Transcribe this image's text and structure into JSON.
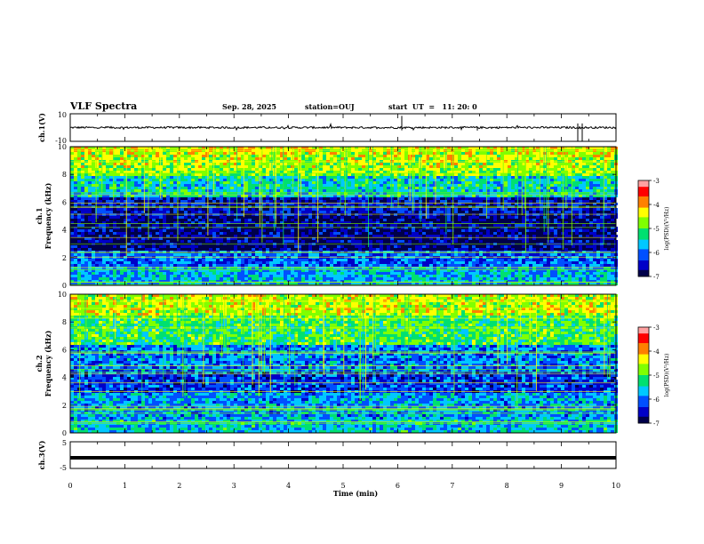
{
  "header": {
    "title": "VLF Spectra",
    "date": "Sep. 28, 2025",
    "station": "station=OUJ",
    "start": "start  UT  =   11: 20: 0"
  },
  "chart_data": [
    {
      "type": "line",
      "panel": "ch1-waveform",
      "ylabel": "ch.1(V)",
      "ylim": [
        -10,
        10
      ],
      "yticks": [
        "10",
        "-10"
      ],
      "xlim": [
        0,
        10
      ],
      "series": [
        {
          "values_description_level": 0
        }
      ]
    },
    {
      "type": "heatmap",
      "panel": "ch1-spectrogram",
      "ylabel_channel": "ch.1",
      "ylabel": "Frequency  (kHz)",
      "ylim": [
        0,
        10
      ],
      "yticks": [
        "0",
        "2",
        "4",
        "6",
        "8",
        "10"
      ],
      "xlim": [
        0,
        10
      ],
      "colorbar": {
        "label": "log(PSD)(V²/Hz)",
        "range": [
          -7,
          -3
        ],
        "ticks": [
          "-3",
          "-4",
          "-5",
          "-6",
          "-7"
        ]
      }
    },
    {
      "type": "heatmap",
      "panel": "ch2-spectrogram",
      "ylabel_channel": "ch.2",
      "ylabel": "Frequency  (kHz)",
      "ylim": [
        0,
        10
      ],
      "yticks": [
        "0",
        "2",
        "4",
        "6",
        "8",
        "10"
      ],
      "xlim": [
        0,
        10
      ],
      "colorbar": {
        "label": "log(PSD)(V²/Hz)",
        "range": [
          -7,
          -3
        ],
        "ticks": [
          "-3",
          "-4",
          "-5",
          "-6",
          "-7"
        ]
      }
    },
    {
      "type": "line",
      "panel": "ch3-waveform",
      "ylabel": "ch.3(V)",
      "ylim": [
        -5,
        5
      ],
      "yticks": [
        "5",
        "-5"
      ],
      "xlim": [
        0,
        10
      ],
      "series": [
        {
          "values_description_level": -1
        }
      ]
    }
  ],
  "xaxis": {
    "label": "Time  (min)",
    "ticks": [
      "0",
      "1",
      "2",
      "3",
      "4",
      "5",
      "6",
      "7",
      "8",
      "9",
      "10"
    ]
  },
  "colors": {
    "background": "#ffffff",
    "frame": "#000000",
    "colormap": [
      "#00004a",
      "#0000c8",
      "#0050ff",
      "#00c8ff",
      "#00e070",
      "#80ff00",
      "#ffff00",
      "#ff8000",
      "#ff0000",
      "#ffa0a0"
    ]
  }
}
